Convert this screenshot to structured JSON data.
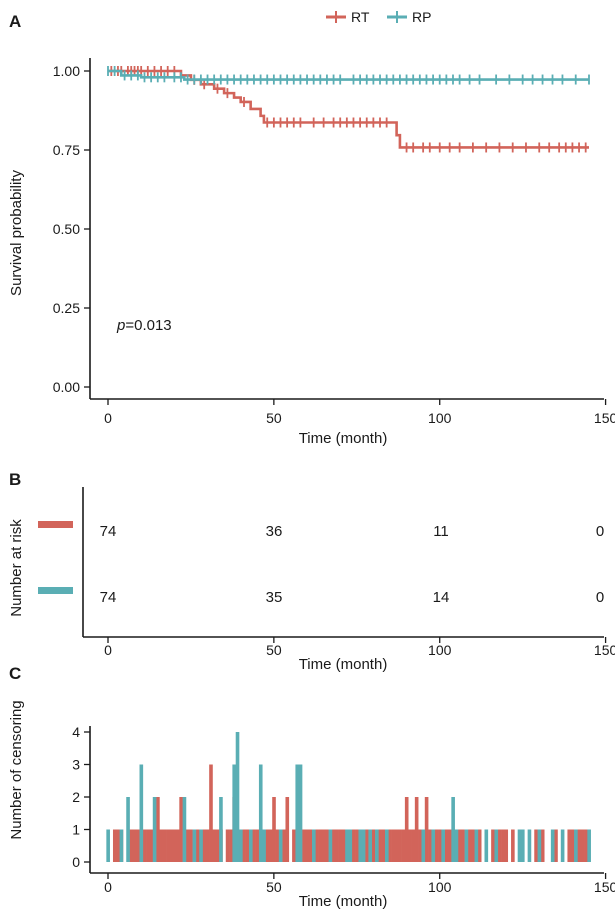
{
  "colors": {
    "RT": "#d2645a",
    "RP": "#5aaeb4",
    "text": "#1a1a1a"
  },
  "legend": {
    "items": [
      {
        "label": "RT",
        "color": "#d2645a"
      },
      {
        "label": "RP",
        "color": "#5aaeb4"
      }
    ],
    "position": "top"
  },
  "panels": {
    "a": "A",
    "b": "B",
    "c": "C"
  },
  "annotation": {
    "p_prefix": "p",
    "p_value": "=0.013"
  },
  "chart_data": [
    {
      "type": "line",
      "panel": "A",
      "title": "",
      "xlabel": "Time (month)",
      "ylabel": "Survival probability",
      "xlim": [
        0,
        145
      ],
      "ylim": [
        0,
        1
      ],
      "x_ticks": [
        "0",
        "50",
        "100",
        "150"
      ],
      "y_ticks": [
        "0.00",
        "0.25",
        "0.50",
        "0.75",
        "1.00"
      ],
      "series": [
        {
          "name": "RT",
          "steps": [
            [
              0,
              1.0
            ],
            [
              22,
              0.986
            ],
            [
              25,
              0.972
            ],
            [
              28,
              0.958
            ],
            [
              32,
              0.944
            ],
            [
              35,
              0.93
            ],
            [
              38,
              0.916
            ],
            [
              40,
              0.902
            ],
            [
              43,
              0.88
            ],
            [
              46,
              0.858
            ],
            [
              47,
              0.837
            ],
            [
              85,
              0.837
            ],
            [
              87,
              0.797
            ],
            [
              88,
              0.758
            ],
            [
              145,
              0.758
            ]
          ],
          "censor_x": [
            1,
            3,
            4,
            6,
            7,
            8,
            9,
            10,
            12,
            14,
            16,
            18,
            20,
            26,
            29,
            33,
            36,
            41,
            48,
            50,
            52,
            54,
            56,
            58,
            62,
            65,
            68,
            70,
            72,
            74,
            76,
            78,
            80,
            82,
            84,
            90,
            92,
            95,
            97,
            100,
            103,
            106,
            110,
            114,
            118,
            122,
            126,
            130,
            133,
            136,
            138,
            140,
            142,
            144
          ]
        },
        {
          "name": "RP",
          "steps": [
            [
              0,
              1.0
            ],
            [
              4,
              0.986
            ],
            [
              10,
              0.98
            ],
            [
              23,
              0.973
            ],
            [
              145,
              0.973
            ]
          ],
          "censor_x": [
            0,
            2,
            5,
            7,
            9,
            11,
            13,
            15,
            17,
            20,
            22,
            24,
            26,
            28,
            30,
            32,
            34,
            36,
            38,
            40,
            42,
            44,
            46,
            48,
            50,
            52,
            54,
            56,
            58,
            60,
            62,
            64,
            66,
            68,
            70,
            74,
            76,
            78,
            80,
            82,
            84,
            86,
            88,
            90,
            92,
            94,
            96,
            98,
            100,
            102,
            104,
            106,
            109,
            112,
            117,
            121,
            125,
            128,
            131,
            134,
            137,
            141,
            145
          ]
        }
      ]
    },
    {
      "type": "table",
      "panel": "B",
      "title": "",
      "xlabel": "Time (month)",
      "ylabel": "Number at risk",
      "xlim": [
        0,
        145
      ],
      "x_ticks": [
        "0",
        "50",
        "100",
        "150"
      ],
      "time_points": [
        0,
        50,
        100,
        150
      ],
      "rows": [
        {
          "name": "RT",
          "values": [
            "74",
            "36",
            "11",
            "0"
          ]
        },
        {
          "name": "RP",
          "values": [
            "74",
            "35",
            "14",
            "0"
          ]
        }
      ]
    },
    {
      "type": "bar",
      "panel": "C",
      "title": "",
      "xlabel": "Time (month)",
      "ylabel": "Number of censoring",
      "xlim": [
        0,
        145
      ],
      "ylim": [
        0,
        4
      ],
      "x_ticks": [
        "0",
        "50",
        "100",
        "150"
      ],
      "y_ticks": [
        "0",
        "1",
        "2",
        "3",
        "4"
      ],
      "series": [
        {
          "name": "RT",
          "x": [
            2,
            3,
            4,
            7,
            8,
            9,
            11,
            12,
            13,
            14,
            15,
            16,
            17,
            18,
            19,
            20,
            21,
            22,
            24,
            25,
            27,
            28,
            29,
            30,
            31,
            32,
            33,
            34,
            36,
            37,
            38,
            40,
            41,
            42,
            44,
            45,
            46,
            47,
            48,
            49,
            50,
            51,
            53,
            54,
            56,
            59,
            60,
            61,
            62,
            63,
            64,
            65,
            66,
            67,
            68,
            69,
            70,
            71,
            72,
            74,
            75,
            76,
            77,
            78,
            80,
            82,
            83,
            84,
            85,
            86,
            87,
            88,
            89,
            90,
            91,
            92,
            93,
            94,
            96,
            97,
            99,
            100,
            102,
            103,
            104,
            106,
            107,
            109,
            110,
            111,
            112,
            116,
            118,
            119,
            120,
            122,
            129,
            130,
            131,
            135,
            139,
            140,
            141,
            142,
            143,
            144
          ],
          "values": [
            1,
            1,
            1,
            1,
            1,
            1,
            1,
            1,
            1,
            1,
            2,
            1,
            1,
            1,
            1,
            1,
            1,
            2,
            1,
            1,
            1,
            1,
            1,
            1,
            3,
            1,
            1,
            1,
            1,
            1,
            2,
            1,
            1,
            1,
            1,
            1,
            1,
            1,
            1,
            1,
            2,
            1,
            1,
            2,
            1,
            1,
            1,
            1,
            1,
            1,
            1,
            1,
            1,
            1,
            1,
            1,
            1,
            1,
            1,
            1,
            1,
            1,
            1,
            1,
            1,
            1,
            1,
            1,
            1,
            1,
            1,
            1,
            1,
            2,
            1,
            1,
            2,
            1,
            2,
            1,
            1,
            1,
            1,
            1,
            1,
            1,
            1,
            1,
            1,
            1,
            1,
            1,
            1,
            1,
            1,
            1,
            1,
            1,
            1,
            1,
            1,
            1,
            1,
            1,
            1,
            1
          ]
        },
        {
          "name": "RP",
          "x": [
            0,
            4,
            6,
            10,
            14,
            23,
            26,
            28,
            34,
            38,
            39,
            40,
            43,
            46,
            47,
            52,
            57,
            58,
            62,
            67,
            72,
            73,
            76,
            77,
            79,
            81,
            84,
            95,
            98,
            101,
            104,
            105,
            108,
            111,
            114,
            117,
            124,
            125,
            127,
            130,
            134,
            137,
            141,
            145
          ],
          "values": [
            1,
            1,
            2,
            3,
            2,
            2,
            1,
            1,
            2,
            3,
            4,
            1,
            1,
            3,
            1,
            1,
            3,
            3,
            1,
            1,
            1,
            1,
            1,
            1,
            1,
            1,
            1,
            1,
            1,
            1,
            2,
            1,
            1,
            1,
            1,
            1,
            1,
            1,
            1,
            1,
            1,
            1,
            1,
            1
          ]
        }
      ]
    }
  ]
}
